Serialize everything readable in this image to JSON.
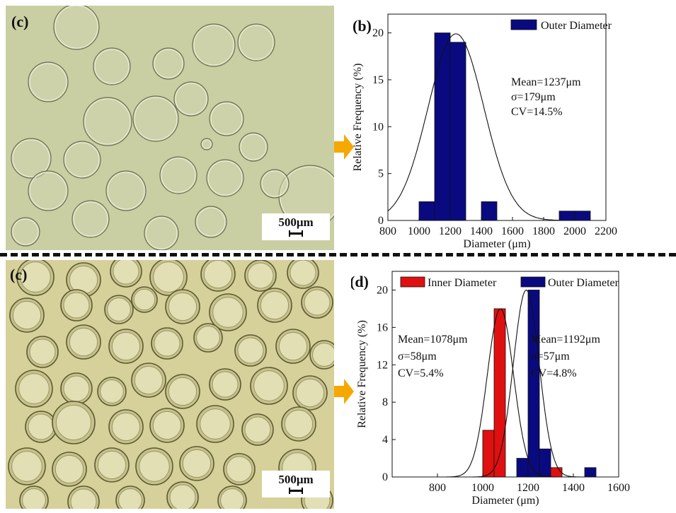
{
  "micrographs": [
    {
      "panel_label": "(c)",
      "scale_label": "500μm"
    },
    {
      "panel_label": "(c)",
      "scale_label": "500μm"
    }
  ],
  "chart_data": [
    {
      "type": "bar",
      "panel_label": "(b)",
      "xlabel": "Diameter (μm)",
      "ylabel": "Relative Frequency (%)",
      "xlim": [
        800,
        2200
      ],
      "ylim": [
        0,
        22
      ],
      "xticks": [
        800,
        1000,
        1200,
        1400,
        1600,
        1800,
        2000,
        2200
      ],
      "yticks": [
        0,
        5,
        10,
        15,
        20
      ],
      "legend_position": "top-right",
      "bin_width": 100,
      "series": [
        {
          "name": "Outer Diameter",
          "color": "#0a0a80",
          "bins": [
            [
              1000,
              2
            ],
            [
              1100,
              20
            ],
            [
              1200,
              19
            ],
            [
              1400,
              2
            ],
            [
              1900,
              1
            ],
            [
              2000,
              1
            ]
          ],
          "fit": {
            "mean": 1237,
            "sigma": 179,
            "peak": 19.9
          }
        }
      ],
      "annotations": [
        {
          "lines": [
            "Mean=1237μm",
            "σ=179μm",
            "CV=14.5%"
          ]
        }
      ]
    },
    {
      "type": "bar",
      "panel_label": "(d)",
      "xlabel": "Diameter (μm)",
      "ylabel": "Relative Frequency (%)",
      "xlim": [
        600,
        1600
      ],
      "ylim": [
        0,
        22
      ],
      "xticks": [
        800,
        1000,
        1200,
        1400,
        1600
      ],
      "yticks": [
        0,
        4,
        8,
        12,
        16,
        20
      ],
      "legend_position": "top",
      "bin_width": 50,
      "series": [
        {
          "name": "Inner Diameter",
          "color": "#e01010",
          "bins": [
            [
              1000,
              5
            ],
            [
              1050,
              18
            ],
            [
              1300,
              1
            ]
          ],
          "fit": {
            "mean": 1078,
            "sigma": 58,
            "peak": 18
          }
        },
        {
          "name": "Outer Diameter",
          "color": "#0a0a80",
          "bins": [
            [
              1150,
              2
            ],
            [
              1200,
              20
            ],
            [
              1250,
              3
            ],
            [
              1450,
              1
            ]
          ],
          "fit": {
            "mean": 1192,
            "sigma": 57,
            "peak": 20
          }
        }
      ],
      "annotations": [
        {
          "lines": [
            "Mean=1078μm",
            "σ=58μm",
            "CV=5.4%"
          ]
        },
        {
          "lines": [
            "Mean=1192μm",
            "σ=57μm",
            "CV=4.8%"
          ]
        }
      ]
    }
  ],
  "colors": {
    "arrow": "#f5a800",
    "micro_top_bg": "#c9cfa2",
    "micro_bottom_bg": "#d6d09a"
  }
}
